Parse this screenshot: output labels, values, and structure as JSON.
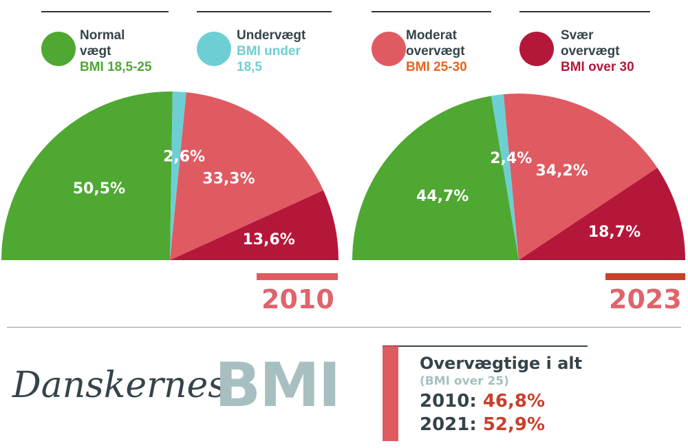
{
  "legend": [
    {
      "title": "Normal vægt",
      "sub": "BMI 18,5-25",
      "color": "#4ea832",
      "sub_color": "#4ea832"
    },
    {
      "title": "Undervægt",
      "sub": "BMI under 18,5",
      "color": "#6dcfd3",
      "sub_color": "#6dcfd3"
    },
    {
      "title": "Moderat overvægt",
      "sub": "BMI 25-30",
      "color": "#e05a62",
      "sub_color": "#e8621e"
    },
    {
      "title": "Svær overvægt",
      "sub": "BMI over 30",
      "color": "#b5173a",
      "sub_color": "#b5173a"
    }
  ],
  "chart_data": [
    {
      "type": "pie",
      "subtype": "half-donut",
      "title": "2010",
      "categories": [
        "Normal vægt",
        "Undervægt",
        "Moderat overvægt",
        "Svær overvægt"
      ],
      "values": [
        50.5,
        2.6,
        33.3,
        13.6
      ],
      "labels": [
        "50,5%",
        "2,6%",
        "33,3%",
        "13,6%"
      ],
      "colors": [
        "#4ea832",
        "#6dcfd3",
        "#e05a62",
        "#b5173a"
      ],
      "year_bar_color": "#e05a62"
    },
    {
      "type": "pie",
      "subtype": "half-donut",
      "title": "2023",
      "categories": [
        "Normal vægt",
        "Undervægt",
        "Moderat overvægt",
        "Svær overvægt"
      ],
      "values": [
        44.7,
        2.4,
        34.2,
        18.7
      ],
      "labels": [
        "44,7%",
        "2,4%",
        "34,2%",
        "18,7%"
      ],
      "colors": [
        "#4ea832",
        "#6dcfd3",
        "#e05a62",
        "#b5173a"
      ],
      "year_bar_color": "#c8402a"
    }
  ],
  "heading": {
    "script": "Danskernes",
    "big": "BMI"
  },
  "summary": {
    "title": "Overvægtige i alt",
    "subtitle": "(BMI over 25)",
    "rows": [
      {
        "year": "2010:",
        "value": "46,8%"
      },
      {
        "year": "2021:",
        "value": "52,9%"
      }
    ]
  }
}
